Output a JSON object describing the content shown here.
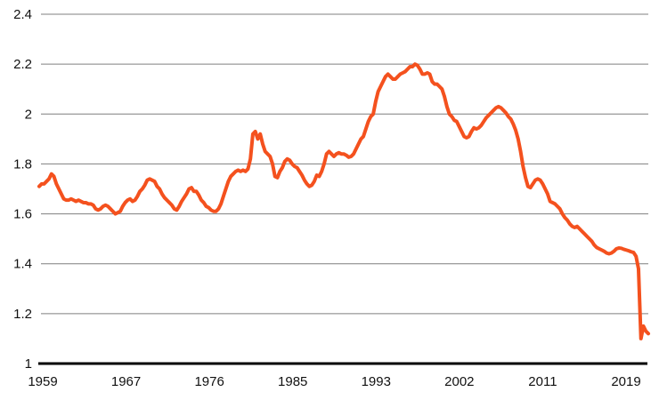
{
  "chart_data": {
    "type": "line",
    "title": "",
    "xlabel": "",
    "ylabel": "",
    "frequency": "quarterly",
    "start_year": 1959,
    "ylim": [
      1,
      2.4
    ],
    "y_ticks": [
      2.4,
      2.2,
      2,
      1.8,
      1.6,
      1.4,
      1.2,
      1
    ],
    "y_tick_labels": [
      "2.4",
      "2.2",
      "2",
      "1.8",
      "1.6",
      "1.4",
      "1.2",
      "1"
    ],
    "x_tick_labels": [
      "1959",
      "1967",
      "1976",
      "1985",
      "1993",
      "2002",
      "2011",
      "2019"
    ],
    "grid": "horizontal",
    "legend": "none",
    "line_color": "#f4511e",
    "grid_color": "#7f7f7f",
    "axis_color": "#000000",
    "text_color": "#111111",
    "values": [
      1.71,
      1.72,
      1.72,
      1.73,
      1.74,
      1.76,
      1.75,
      1.72,
      1.7,
      1.68,
      1.66,
      1.655,
      1.655,
      1.66,
      1.655,
      1.65,
      1.655,
      1.65,
      1.645,
      1.645,
      1.64,
      1.64,
      1.635,
      1.62,
      1.615,
      1.62,
      1.63,
      1.635,
      1.63,
      1.62,
      1.61,
      1.6,
      1.605,
      1.61,
      1.63,
      1.645,
      1.655,
      1.66,
      1.65,
      1.655,
      1.67,
      1.69,
      1.7,
      1.715,
      1.735,
      1.74,
      1.735,
      1.73,
      1.71,
      1.7,
      1.68,
      1.665,
      1.655,
      1.645,
      1.635,
      1.62,
      1.615,
      1.63,
      1.65,
      1.665,
      1.68,
      1.7,
      1.705,
      1.69,
      1.69,
      1.675,
      1.655,
      1.645,
      1.63,
      1.625,
      1.615,
      1.61,
      1.61,
      1.62,
      1.64,
      1.67,
      1.7,
      1.73,
      1.75,
      1.76,
      1.77,
      1.775,
      1.77,
      1.775,
      1.77,
      1.78,
      1.82,
      1.92,
      1.93,
      1.9,
      1.92,
      1.88,
      1.85,
      1.84,
      1.83,
      1.8,
      1.75,
      1.745,
      1.77,
      1.785,
      1.81,
      1.82,
      1.815,
      1.8,
      1.79,
      1.785,
      1.77,
      1.755,
      1.735,
      1.72,
      1.71,
      1.715,
      1.73,
      1.755,
      1.75,
      1.77,
      1.8,
      1.84,
      1.85,
      1.84,
      1.83,
      1.84,
      1.845,
      1.84,
      1.84,
      1.835,
      1.827,
      1.83,
      1.84,
      1.86,
      1.88,
      1.9,
      1.91,
      1.94,
      1.97,
      1.99,
      2.0,
      2.05,
      2.09,
      2.11,
      2.13,
      2.15,
      2.16,
      2.15,
      2.14,
      2.14,
      2.15,
      2.16,
      2.165,
      2.17,
      2.18,
      2.19,
      2.19,
      2.2,
      2.195,
      2.18,
      2.16,
      2.16,
      2.165,
      2.16,
      2.13,
      2.12,
      2.12,
      2.11,
      2.1,
      2.07,
      2.03,
      2.0,
      1.99,
      1.975,
      1.97,
      1.95,
      1.93,
      1.91,
      1.905,
      1.91,
      1.93,
      1.945,
      1.94,
      1.945,
      1.955,
      1.97,
      1.985,
      1.995,
      2.005,
      2.015,
      2.025,
      2.03,
      2.025,
      2.015,
      2.005,
      1.99,
      1.98,
      1.96,
      1.935,
      1.9,
      1.85,
      1.79,
      1.745,
      1.71,
      1.705,
      1.72,
      1.735,
      1.74,
      1.735,
      1.72,
      1.7,
      1.68,
      1.65,
      1.645,
      1.64,
      1.63,
      1.62,
      1.6,
      1.585,
      1.575,
      1.56,
      1.55,
      1.545,
      1.55,
      1.54,
      1.53,
      1.52,
      1.51,
      1.5,
      1.49,
      1.475,
      1.465,
      1.46,
      1.455,
      1.45,
      1.443,
      1.44,
      1.443,
      1.45,
      1.46,
      1.463,
      1.462,
      1.458,
      1.455,
      1.452,
      1.448,
      1.445,
      1.43,
      1.38,
      1.1,
      1.15,
      1.13,
      1.12
    ]
  }
}
